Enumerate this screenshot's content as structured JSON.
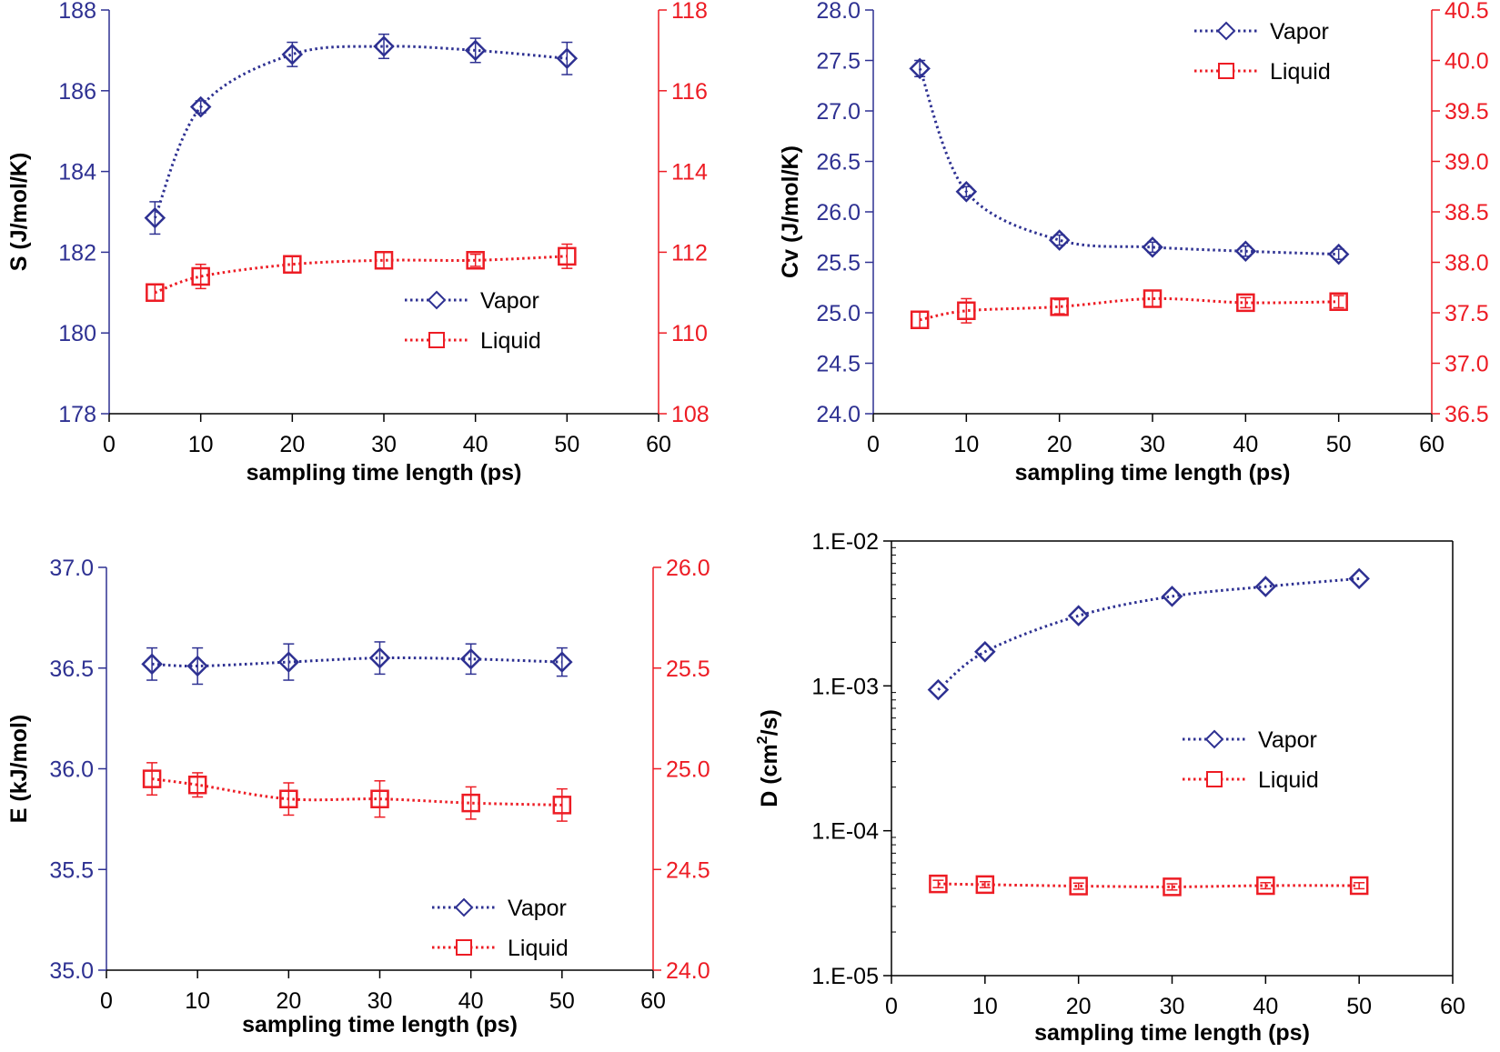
{
  "colors": {
    "vapor": "#2e3192",
    "liquid": "#ed1c24",
    "frame": "#000000"
  },
  "chart_data": [
    {
      "type": "line",
      "xlabel": "sampling time length (ps)",
      "ylabel": "S (J/mol/K)",
      "ylabel_sup": "",
      "ylabel_end": "",
      "xlim": [
        0,
        60
      ],
      "xticks": [
        "0",
        "10",
        "20",
        "30",
        "40",
        "50",
        "60"
      ],
      "ylim_left": [
        178,
        188
      ],
      "yticks_left": [
        "178",
        "180",
        "182",
        "184",
        "186",
        "188"
      ],
      "ylim_right": [
        108,
        118
      ],
      "yticks_right": [
        "108",
        "110",
        "112",
        "114",
        "116",
        "118"
      ],
      "y_scale": "linear",
      "legend": "bottom-right",
      "series": [
        {
          "name": "Vapor",
          "axis": "left",
          "marker": "diamond",
          "x": [
            5,
            10,
            20,
            30,
            40,
            50
          ],
          "y": [
            182.85,
            185.6,
            186.9,
            187.1,
            187.0,
            186.8
          ],
          "err": [
            0.4,
            0.15,
            0.3,
            0.3,
            0.3,
            0.4
          ]
        },
        {
          "name": "Liquid",
          "axis": "right",
          "marker": "square",
          "x": [
            5,
            10,
            20,
            30,
            40,
            50
          ],
          "y": [
            111.0,
            111.4,
            111.7,
            111.8,
            111.8,
            111.9
          ],
          "err": [
            0.2,
            0.3,
            0.2,
            0.2,
            0.15,
            0.3
          ]
        }
      ]
    },
    {
      "type": "line",
      "xlabel": "sampling time length (ps)",
      "ylabel": "Cv (J/mol/K)",
      "ylabel_sup": "",
      "ylabel_end": "",
      "xlim": [
        0,
        60
      ],
      "xticks": [
        "0",
        "10",
        "20",
        "30",
        "40",
        "50",
        "60"
      ],
      "ylim_left": [
        24.0,
        28.0
      ],
      "yticks_left": [
        "24.0",
        "24.5",
        "25.0",
        "25.5",
        "26.0",
        "26.5",
        "27.0",
        "27.5",
        "28.0"
      ],
      "ylim_right": [
        36.5,
        40.5
      ],
      "yticks_right": [
        "36.5",
        "37.0",
        "37.5",
        "38.0",
        "38.5",
        "39.0",
        "39.5",
        "40.0",
        "40.5"
      ],
      "y_scale": "linear",
      "legend": "top-right",
      "series": [
        {
          "name": "Vapor",
          "axis": "left",
          "marker": "diamond",
          "x": [
            5,
            10,
            20,
            30,
            40,
            50
          ],
          "y": [
            27.42,
            26.2,
            25.72,
            25.65,
            25.61,
            25.58
          ],
          "err": [
            0.08,
            0.05,
            0.05,
            0.05,
            0.05,
            0.05
          ]
        },
        {
          "name": "Liquid",
          "axis": "right",
          "marker": "square",
          "x": [
            5,
            10,
            20,
            30,
            40,
            50
          ],
          "y": [
            37.43,
            37.52,
            37.56,
            37.64,
            37.6,
            37.61
          ],
          "err": [
            0.08,
            0.12,
            0.07,
            0.08,
            0.05,
            0.06
          ]
        }
      ]
    },
    {
      "type": "line",
      "xlabel": "sampling time length (ps)",
      "ylabel": "E (kJ/mol)",
      "ylabel_sup": "",
      "ylabel_end": "",
      "xlim": [
        0,
        60
      ],
      "xticks": [
        "0",
        "10",
        "20",
        "30",
        "40",
        "50",
        "60"
      ],
      "ylim_left": [
        35.0,
        37.0
      ],
      "yticks_left": [
        "35.0",
        "35.5",
        "36.0",
        "36.5",
        "37.0"
      ],
      "ylim_right": [
        24.0,
        26.0
      ],
      "yticks_right": [
        "24.0",
        "24.5",
        "25.0",
        "25.5",
        "26.0"
      ],
      "y_scale": "linear",
      "legend": "bottom-right",
      "series": [
        {
          "name": "Vapor",
          "axis": "left",
          "marker": "diamond",
          "x": [
            5,
            10,
            20,
            30,
            40,
            50
          ],
          "y": [
            36.52,
            36.51,
            36.53,
            36.55,
            36.545,
            36.53
          ],
          "err": [
            0.08,
            0.09,
            0.09,
            0.08,
            0.075,
            0.07
          ]
        },
        {
          "name": "Liquid",
          "axis": "right",
          "marker": "square",
          "x": [
            5,
            10,
            20,
            30,
            40,
            50
          ],
          "y": [
            24.95,
            24.92,
            24.85,
            24.85,
            24.83,
            24.82
          ],
          "err": [
            0.08,
            0.06,
            0.08,
            0.09,
            0.08,
            0.08
          ]
        }
      ]
    },
    {
      "type": "line",
      "xlabel": "sampling time length (ps)",
      "ylabel": "D (cm",
      "ylabel_sup": "2",
      "ylabel_end": "/s)",
      "xlim": [
        0,
        60
      ],
      "xticks": [
        "0",
        "10",
        "20",
        "30",
        "40",
        "50",
        "60"
      ],
      "ylim_left": [
        1e-05,
        0.01
      ],
      "yticks_left": [
        "1.E-05",
        "1.E-04",
        "1.E-03",
        "1.E-02"
      ],
      "ytick_values_left": [
        1e-05,
        0.0001,
        0.001,
        0.01
      ],
      "y_scale": "log",
      "legend": "right",
      "series": [
        {
          "name": "Vapor",
          "axis": "left",
          "marker": "diamond",
          "x": [
            5,
            10,
            20,
            30,
            40,
            50
          ],
          "y": [
            0.00094,
            0.00172,
            0.00305,
            0.00415,
            0.00485,
            0.0055
          ],
          "err": [
            0,
            0,
            0,
            0,
            0,
            0
          ]
        },
        {
          "name": "Liquid",
          "axis": "left",
          "marker": "square",
          "x": [
            5,
            10,
            20,
            30,
            40,
            50
          ],
          "y": [
            4.3e-05,
            4.25e-05,
            4.15e-05,
            4.1e-05,
            4.18e-05,
            4.18e-05
          ],
          "err": [
            2.5e-06,
            2e-06,
            2e-06,
            2e-06,
            2e-06,
            2e-06
          ]
        }
      ]
    }
  ]
}
